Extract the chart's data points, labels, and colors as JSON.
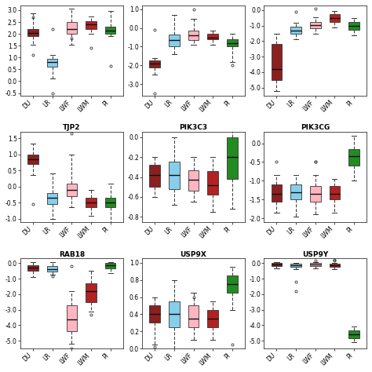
{
  "titles": [
    "",
    "",
    "",
    "TJP2",
    "PIK3C3",
    "PIK3CG",
    "RAB18",
    "USP9X",
    "USP9Y"
  ],
  "breeds": [
    "DU",
    "LR",
    "LWF",
    "LWM",
    "PI"
  ],
  "colors": [
    "#8B2020",
    "#87CEEB",
    "#FFB6C1",
    "#B22222",
    "#228B22"
  ],
  "boxplot_data": {
    "gene1": {
      "DU": {
        "med": 2.05,
        "q1": 1.9,
        "q3": 2.2,
        "whislo": 1.55,
        "whishi": 2.85,
        "fliers": [
          1.1,
          2.7
        ]
      },
      "LR": {
        "med": 0.8,
        "q1": 0.6,
        "q3": 0.95,
        "whislo": 0.1,
        "whishi": 1.1,
        "fliers": [
          2.2,
          -0.5
        ]
      },
      "LWF": {
        "med": 2.2,
        "q1": 2.0,
        "q3": 2.5,
        "whislo": 1.55,
        "whishi": 3.05,
        "fliers": [
          1.8
        ]
      },
      "LWM": {
        "med": 2.4,
        "q1": 2.2,
        "q3": 2.55,
        "whislo": 2.0,
        "whishi": 2.75,
        "fliers": [
          1.4
        ]
      },
      "PI": {
        "med": 2.15,
        "q1": 2.0,
        "q3": 2.3,
        "whislo": 1.9,
        "whishi": 2.95,
        "fliers": [
          0.65
        ]
      }
    },
    "gene2": {
      "DU": {
        "med": -1.9,
        "q1": -2.1,
        "q3": -1.75,
        "whislo": -2.5,
        "whishi": -1.6,
        "fliers": [
          -3.5,
          -0.1
        ]
      },
      "LR": {
        "med": -0.65,
        "q1": -1.0,
        "q3": -0.35,
        "whislo": -1.4,
        "whishi": 0.7,
        "fliers": []
      },
      "LWF": {
        "med": -0.4,
        "q1": -0.65,
        "q3": -0.15,
        "whislo": -0.9,
        "whishi": 0.5,
        "fliers": [
          1.0
        ]
      },
      "LWM": {
        "med": -0.5,
        "q1": -0.6,
        "q3": -0.3,
        "whislo": -0.9,
        "whishi": -0.15,
        "fliers": []
      },
      "PI": {
        "med": -0.8,
        "q1": -1.0,
        "q3": -0.6,
        "whislo": -1.8,
        "whishi": -0.3,
        "fliers": [
          -2.0
        ]
      }
    },
    "gene3": {
      "DU": {
        "med": -3.8,
        "q1": -4.5,
        "q3": -2.2,
        "whislo": -5.2,
        "whishi": -1.5,
        "fliers": []
      },
      "LR": {
        "med": -1.3,
        "q1": -1.55,
        "q3": -1.05,
        "whislo": -1.9,
        "whishi": -0.8,
        "fliers": [
          -0.1
        ]
      },
      "LWF": {
        "med": -0.95,
        "q1": -1.15,
        "q3": -0.75,
        "whislo": -1.5,
        "whishi": -0.45,
        "fliers": [
          0.1
        ]
      },
      "LWM": {
        "med": -0.5,
        "q1": -0.75,
        "q3": -0.25,
        "whislo": -1.1,
        "whishi": -0.05,
        "fliers": []
      },
      "PI": {
        "med": -1.0,
        "q1": -1.25,
        "q3": -0.75,
        "whislo": -1.65,
        "whishi": -0.5,
        "fliers": []
      }
    },
    "TJP2": {
      "DU": {
        "med": 0.85,
        "q1": 0.7,
        "q3": 1.0,
        "whislo": 0.35,
        "whishi": 1.35,
        "fliers": [
          -0.55
        ]
      },
      "LR": {
        "med": -0.35,
        "q1": -0.55,
        "q3": -0.2,
        "whislo": -1.0,
        "whishi": 0.4,
        "fliers": []
      },
      "LWF": {
        "med": -0.1,
        "q1": -0.3,
        "q3": 0.1,
        "whislo": -0.65,
        "whishi": 1.0,
        "fliers": [
          1.65
        ]
      },
      "LWM": {
        "med": -0.5,
        "q1": -0.65,
        "q3": -0.35,
        "whislo": -0.9,
        "whishi": -0.1,
        "fliers": []
      },
      "PI": {
        "med": -0.5,
        "q1": -0.65,
        "q3": -0.35,
        "whislo": -1.1,
        "whishi": 0.1,
        "fliers": []
      }
    },
    "PIK3C3": {
      "DU": {
        "med": -0.38,
        "q1": -0.5,
        "q3": -0.28,
        "whislo": -0.6,
        "whishi": -0.2,
        "fliers": []
      },
      "LR": {
        "med": -0.38,
        "q1": -0.52,
        "q3": -0.25,
        "whislo": -0.68,
        "whishi": 0.0,
        "fliers": []
      },
      "LWF": {
        "med": -0.43,
        "q1": -0.54,
        "q3": -0.33,
        "whislo": -0.65,
        "whishi": -0.2,
        "fliers": []
      },
      "LWM": {
        "med": -0.48,
        "q1": -0.58,
        "q3": -0.34,
        "whislo": -0.75,
        "whishi": -0.2,
        "fliers": []
      },
      "PI": {
        "med": -0.2,
        "q1": -0.42,
        "q3": 0.0,
        "whislo": -0.72,
        "whishi": 0.28,
        "fliers": []
      }
    },
    "PIK3CG": {
      "DU": {
        "med": -1.35,
        "q1": -1.55,
        "q3": -1.1,
        "whislo": -1.85,
        "whishi": -0.85,
        "fliers": [
          -0.5
        ]
      },
      "LR": {
        "med": -1.3,
        "q1": -1.5,
        "q3": -1.1,
        "whislo": -1.95,
        "whishi": -0.85,
        "fliers": []
      },
      "LWF": {
        "med": -1.35,
        "q1": -1.55,
        "q3": -1.15,
        "whislo": -1.9,
        "whishi": -0.85,
        "fliers": [
          -0.5,
          -0.5
        ]
      },
      "LWM": {
        "med": -1.35,
        "q1": -1.5,
        "q3": -1.15,
        "whislo": -1.85,
        "whishi": -0.95,
        "fliers": []
      },
      "PI": {
        "med": -0.35,
        "q1": -0.6,
        "q3": -0.15,
        "whislo": -1.0,
        "whishi": 0.2,
        "fliers": []
      }
    },
    "RAB18": {
      "DU": {
        "med": -0.3,
        "q1": -0.5,
        "q3": -0.15,
        "whislo": -0.9,
        "whishi": 0.05,
        "fliers": []
      },
      "LR": {
        "med": -0.4,
        "q1": -0.55,
        "q3": -0.2,
        "whislo": -0.75,
        "whishi": 0.05,
        "fliers": [
          -0.85
        ]
      },
      "LWF": {
        "med": -3.6,
        "q1": -4.4,
        "q3": -2.7,
        "whislo": -5.2,
        "whishi": -1.8,
        "fliers": [
          -5.5,
          -0.2
        ]
      },
      "LWM": {
        "med": -1.8,
        "q1": -2.5,
        "q3": -1.3,
        "whislo": -3.1,
        "whishi": -0.5,
        "fliers": [
          -3.3
        ]
      },
      "PI": {
        "med": -0.15,
        "q1": -0.35,
        "q3": 0.0,
        "whislo": -0.65,
        "whishi": 0.05,
        "fliers": []
      }
    },
    "USP9X": {
      "DU": {
        "med": 0.4,
        "q1": 0.3,
        "q3": 0.5,
        "whislo": 0.05,
        "whishi": 0.6,
        "fliers": [
          0.02
        ]
      },
      "LR": {
        "med": 0.4,
        "q1": 0.25,
        "q3": 0.55,
        "whislo": 0.0,
        "whishi": 0.8,
        "fliers": []
      },
      "LWF": {
        "med": 0.35,
        "q1": 0.25,
        "q3": 0.5,
        "whislo": 0.1,
        "whishi": 0.65,
        "fliers": [
          0.6
        ]
      },
      "LWM": {
        "med": 0.35,
        "q1": 0.25,
        "q3": 0.45,
        "whislo": 0.1,
        "whishi": 0.55,
        "fliers": []
      },
      "PI": {
        "med": 0.75,
        "q1": 0.65,
        "q3": 0.85,
        "whislo": 0.45,
        "whishi": 0.95,
        "fliers": [
          0.05
        ]
      }
    },
    "USP9Y": {
      "DU": {
        "med": -0.1,
        "q1": -0.2,
        "q3": 0.0,
        "whislo": -0.35,
        "whishi": 0.05,
        "fliers": []
      },
      "LR": {
        "med": -0.15,
        "q1": -0.25,
        "q3": -0.05,
        "whislo": -0.4,
        "whishi": 0.0,
        "fliers": [
          -1.2,
          -1.8
        ]
      },
      "LWF": {
        "med": -0.1,
        "q1": -0.2,
        "q3": 0.0,
        "whislo": -0.35,
        "whishi": 0.05,
        "fliers": [
          0.15
        ]
      },
      "LWM": {
        "med": -0.15,
        "q1": -0.25,
        "q3": -0.05,
        "whislo": -0.4,
        "whishi": 0.0,
        "fliers": [
          0.2,
          0.15
        ]
      },
      "PI": {
        "med": -4.6,
        "q1": -4.85,
        "q3": -4.35,
        "whislo": -5.1,
        "whishi": -4.1,
        "fliers": []
      }
    }
  },
  "ylims": {
    "gene1": [
      -0.6,
      3.2
    ],
    "gene2": [
      -3.6,
      1.2
    ],
    "gene3": [
      -5.5,
      0.3
    ],
    "TJP2": [
      -1.1,
      1.7
    ],
    "PIK3C3": [
      -0.85,
      0.05
    ],
    "PIK3CG": [
      -2.1,
      0.3
    ],
    "RAB18": [
      -5.5,
      0.3
    ],
    "USP9X": [
      0.0,
      1.05
    ],
    "USP9Y": [
      -5.5,
      0.3
    ]
  },
  "yticks": {
    "gene1": [
      -0.5,
      0.0,
      0.5,
      1.0,
      1.5,
      2.0,
      2.5,
      3.0
    ],
    "gene2": [
      -3.0,
      -2.0,
      -1.0,
      0.0,
      1.0
    ],
    "gene3": [
      -5.0,
      -4.0,
      -3.0,
      -2.0,
      -1.0,
      0.0
    ],
    "TJP2": [
      -1.0,
      -0.5,
      0.0,
      0.5,
      1.0,
      1.5
    ],
    "PIK3C3": [
      -0.8,
      -0.6,
      -0.4,
      -0.2,
      0.0
    ],
    "PIK3CG": [
      -2.0,
      -1.5,
      -1.0,
      -0.5,
      0.0
    ],
    "RAB18": [
      -5.0,
      -4.0,
      -3.0,
      -2.0,
      -1.0,
      0.0
    ],
    "USP9X": [
      0.0,
      0.2,
      0.4,
      0.6,
      0.8,
      1.0
    ],
    "USP9Y": [
      -5.0,
      -4.0,
      -3.0,
      -2.0,
      -1.0,
      0.0
    ]
  }
}
